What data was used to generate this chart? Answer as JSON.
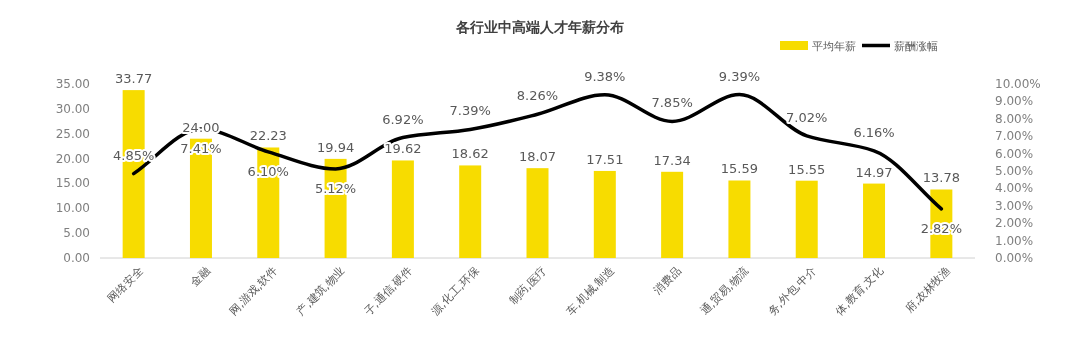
{
  "chart_data": {
    "type": "bar",
    "title": "各行业中高端人才年薪分布",
    "categories": [
      "网络安全",
      "金融",
      "网,游戏,软件",
      "产,建筑,物业",
      "子,通信,硬件",
      "源,化工,环保",
      "制药,医疗",
      "车,机械,制造",
      "消费品",
      "通,贸易,物流",
      "务,外包,中介",
      "体,教育,文化",
      "府,农林牧渔"
    ],
    "series": [
      {
        "name": "平均年薪",
        "color": "#f7dc00",
        "values": [
          33.77,
          24.0,
          22.23,
          19.94,
          19.62,
          18.62,
          18.07,
          17.51,
          17.34,
          15.59,
          15.55,
          14.97,
          13.78
        ],
        "value_labels": [
          "33.77",
          "24.00",
          "22.23",
          "19.94",
          "19.62",
          "18.62",
          "18.07",
          "17.51",
          "17.34",
          "15.59",
          "15.55",
          "14.97",
          "13.78"
        ]
      },
      {
        "name": "薪酬涨幅",
        "type": "line",
        "axis": "y2",
        "color": "#000000",
        "values": [
          4.85,
          7.41,
          6.1,
          5.12,
          6.92,
          7.39,
          8.26,
          9.38,
          7.85,
          9.39,
          7.02,
          6.16,
          2.82
        ],
        "value_labels": [
          "4.85%",
          "7.41%",
          "6.10%",
          "5.12%",
          "6.92%",
          "7.39%",
          "8.26%",
          "9.38%",
          "7.85%",
          "9.39%",
          "7.02%",
          "6.16%",
          "2.82%"
        ]
      }
    ],
    "ylim": [
      0,
      35
    ],
    "yticks": [
      {
        "value": 0,
        "label": "0.00"
      },
      {
        "value": 5,
        "label": "5.00"
      },
      {
        "value": 10,
        "label": "10.00"
      },
      {
        "value": 15,
        "label": "15.00"
      },
      {
        "value": 20,
        "label": "20.00"
      },
      {
        "value": 25,
        "label": "25.00"
      },
      {
        "value": 30,
        "label": "30.00"
      },
      {
        "value": 35,
        "label": "35.00"
      }
    ],
    "y2lim": [
      0,
      10
    ],
    "y2ticks": [
      {
        "value": 0,
        "label": "0.00%"
      },
      {
        "value": 1,
        "label": "1.00%"
      },
      {
        "value": 2,
        "label": "2.00%"
      },
      {
        "value": 3,
        "label": "3.00%"
      },
      {
        "value": 4,
        "label": "4.00%"
      },
      {
        "value": 5,
        "label": "5.00%"
      },
      {
        "value": 6,
        "label": "6.00%"
      },
      {
        "value": 7,
        "label": "7.00%"
      },
      {
        "value": 8,
        "label": "8.00%"
      },
      {
        "value": 9,
        "label": "9.00%"
      },
      {
        "value": 10,
        "label": "10.00%"
      }
    ],
    "legend": "top right",
    "grid": false,
    "marker": "none",
    "line_style": "solid"
  }
}
